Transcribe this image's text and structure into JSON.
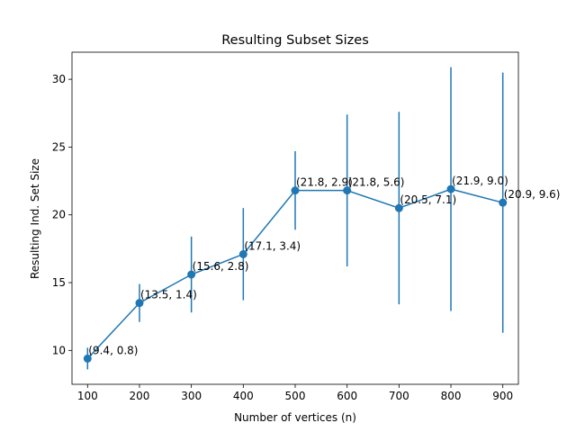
{
  "chart_data": {
    "type": "line",
    "title": "Resulting Subset Sizes",
    "xlabel": "Number of vertices (n)",
    "ylabel": "Resulting Ind. Set Size",
    "xlim": [
      70,
      930
    ],
    "ylim": [
      7.5,
      32
    ],
    "xticks": [
      100,
      200,
      300,
      400,
      500,
      600,
      700,
      800,
      900
    ],
    "yticks": [
      10,
      15,
      20,
      25,
      30
    ],
    "grid": false,
    "series": [
      {
        "color": "#1f77b4",
        "x": [
          100,
          200,
          300,
          400,
          500,
          600,
          700,
          800,
          900
        ],
        "y": [
          9.4,
          13.5,
          15.6,
          17.1,
          21.8,
          21.8,
          20.5,
          21.9,
          20.9
        ],
        "err": [
          0.8,
          1.4,
          2.8,
          3.4,
          2.9,
          5.6,
          7.1,
          9.0,
          9.6
        ]
      }
    ],
    "annotations": [
      {
        "x": 100,
        "y": 9.4,
        "text": "(9.4, 0.8)"
      },
      {
        "x": 200,
        "y": 13.5,
        "text": "(13.5, 1.4)"
      },
      {
        "x": 300,
        "y": 15.6,
        "text": "(15.6, 2.8)"
      },
      {
        "x": 400,
        "y": 17.1,
        "text": "(17.1, 3.4)"
      },
      {
        "x": 500,
        "y": 21.8,
        "text": "(21.8, 2.9)"
      },
      {
        "x": 600,
        "y": 21.8,
        "text": "(21.8, 5.6)"
      },
      {
        "x": 700,
        "y": 20.5,
        "text": "(20.5, 7.1)"
      },
      {
        "x": 800,
        "y": 21.9,
        "text": "(21.9, 9.0)"
      },
      {
        "x": 900,
        "y": 20.9,
        "text": "(20.9, 9.6)"
      }
    ]
  }
}
